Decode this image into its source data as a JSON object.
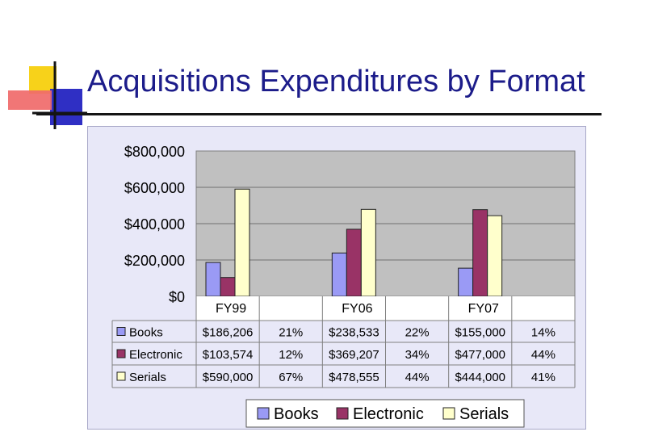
{
  "slide": {
    "title": "Acquisitions Expenditures by Format"
  },
  "colors": {
    "title": "#1c1c8a",
    "plot_bg": "#c0c0c0",
    "chart_bg": "#e8e8f8",
    "books": "#9a9af5",
    "electronic": "#993366",
    "serials": "#ffffcc"
  },
  "chart_data": {
    "type": "bar",
    "title": "",
    "xlabel": "",
    "ylabel": "",
    "ylim": [
      0,
      800000
    ],
    "y_ticks": [
      0,
      200000,
      400000,
      600000,
      800000
    ],
    "y_tick_labels": [
      "$0",
      "$200,000",
      "$400,000",
      "$600,000",
      "$800,000"
    ],
    "grid": true,
    "legend_position": "bottom",
    "categories": [
      "FY99",
      "FY06",
      "FY07"
    ],
    "series": [
      {
        "name": "Books",
        "color": "#9a9af5",
        "values": [
          186206,
          238533,
          155000
        ],
        "labels": [
          "$186,206",
          "$238,533",
          "$155,000"
        ],
        "percents": [
          "21%",
          "22%",
          "14%"
        ]
      },
      {
        "name": "Electronic",
        "color": "#993366",
        "values": [
          103574,
          369207,
          477000
        ],
        "labels": [
          "$103,574",
          "$369,207",
          "$477,000"
        ],
        "percents": [
          "12%",
          "34%",
          "44%"
        ]
      },
      {
        "name": "Serials",
        "color": "#ffffcc",
        "values": [
          590000,
          478555,
          444000
        ],
        "labels": [
          "$590,000",
          "$478,555",
          "$444,000"
        ],
        "percents": [
          "67%",
          "44%",
          "41%"
        ]
      }
    ]
  }
}
